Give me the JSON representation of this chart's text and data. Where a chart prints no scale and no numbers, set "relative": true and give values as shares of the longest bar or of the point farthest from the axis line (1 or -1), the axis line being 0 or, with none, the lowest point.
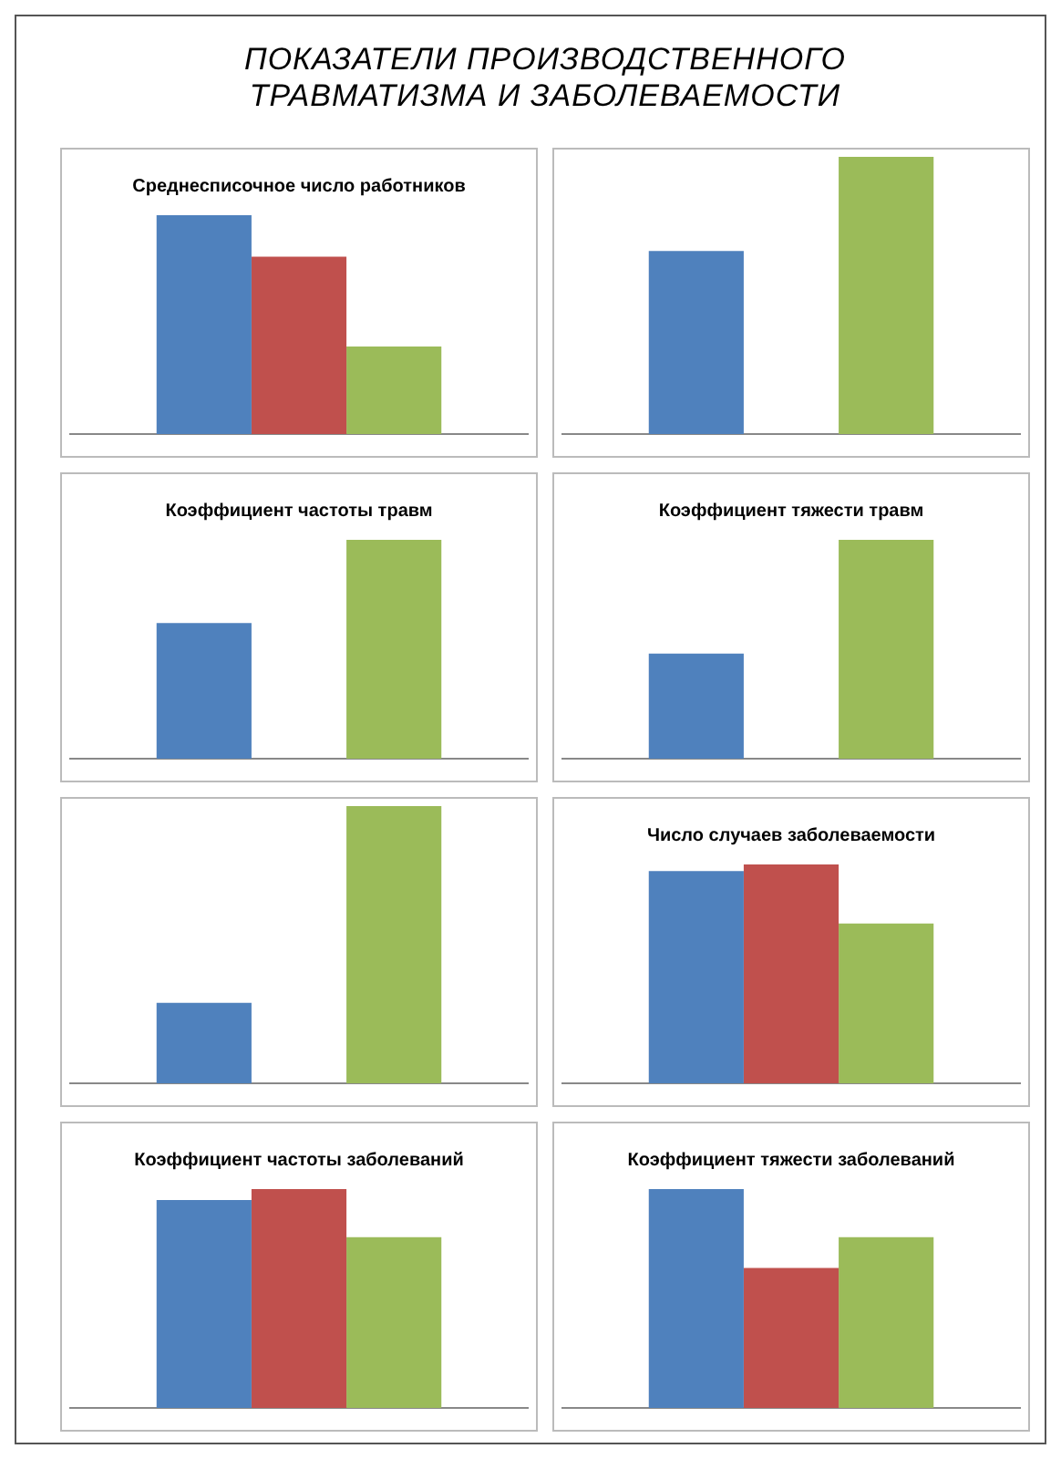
{
  "chart_data": [
    {
      "type": "other",
      "title": "ПОКАЗАТЕЛИ ПРОИЗВОДСТВЕННОГО ТРАВМАТИЗМА И ЗАБОЛЕВАЕМОСТИ"
    },
    {
      "type": "bar",
      "title": "Среднесписочное число работников",
      "relative": true,
      "categories": [
        null
      ],
      "series": [
        {
          "color": "#4f81bd",
          "values": [
            1
          ]
        },
        {
          "color": "#c0504d",
          "values": [
            0.81
          ]
        },
        {
          "color": "#9bbb59",
          "values": [
            0.4
          ]
        }
      ]
    },
    {
      "type": "bar",
      "relative": true,
      "categories": [
        null
      ],
      "series": [
        {
          "color": "#4f81bd",
          "values": [
            0.66
          ]
        },
        {
          "color": "#c0504d",
          "values": [
            null
          ]
        },
        {
          "color": "#9bbb59",
          "values": [
            1
          ]
        }
      ]
    },
    {
      "type": "bar",
      "title": "Коэффициент частоты травм",
      "relative": true,
      "categories": [
        null
      ],
      "series": [
        {
          "color": "#4f81bd",
          "values": [
            0.62
          ]
        },
        {
          "color": "#c0504d",
          "values": [
            null
          ]
        },
        {
          "color": "#9bbb59",
          "values": [
            1
          ]
        }
      ]
    },
    {
      "type": "bar",
      "title": "Коэффициент тяжести травм",
      "relative": true,
      "categories": [
        null
      ],
      "series": [
        {
          "color": "#4f81bd",
          "values": [
            0.48
          ]
        },
        {
          "color": "#c0504d",
          "values": [
            null
          ]
        },
        {
          "color": "#9bbb59",
          "values": [
            1
          ]
        }
      ]
    },
    {
      "type": "bar",
      "relative": true,
      "categories": [
        null
      ],
      "series": [
        {
          "color": "#4f81bd",
          "values": [
            0.29
          ]
        },
        {
          "color": "#c0504d",
          "values": [
            null
          ]
        },
        {
          "color": "#9bbb59",
          "values": [
            1
          ]
        }
      ]
    },
    {
      "type": "bar",
      "title": "Число случаев заболеваемости",
      "relative": true,
      "categories": [
        null
      ],
      "series": [
        {
          "color": "#4f81bd",
          "values": [
            0.97
          ]
        },
        {
          "color": "#c0504d",
          "values": [
            1
          ]
        },
        {
          "color": "#9bbb59",
          "values": [
            0.73
          ]
        }
      ]
    },
    {
      "type": "bar",
      "title": "Коэффициент частоты заболеваний",
      "relative": true,
      "categories": [
        null
      ],
      "series": [
        {
          "color": "#4f81bd",
          "values": [
            0.95
          ]
        },
        {
          "color": "#c0504d",
          "values": [
            1
          ]
        },
        {
          "color": "#9bbb59",
          "values": [
            0.78
          ]
        }
      ]
    },
    {
      "type": "bar",
      "title": "Коэффициент тяжести заболеваний",
      "relative": true,
      "categories": [
        null
      ],
      "series": [
        {
          "color": "#4f81bd",
          "values": [
            1
          ]
        },
        {
          "color": "#c0504d",
          "values": [
            0.64
          ]
        },
        {
          "color": "#9bbb59",
          "values": [
            0.78
          ]
        }
      ]
    }
  ]
}
